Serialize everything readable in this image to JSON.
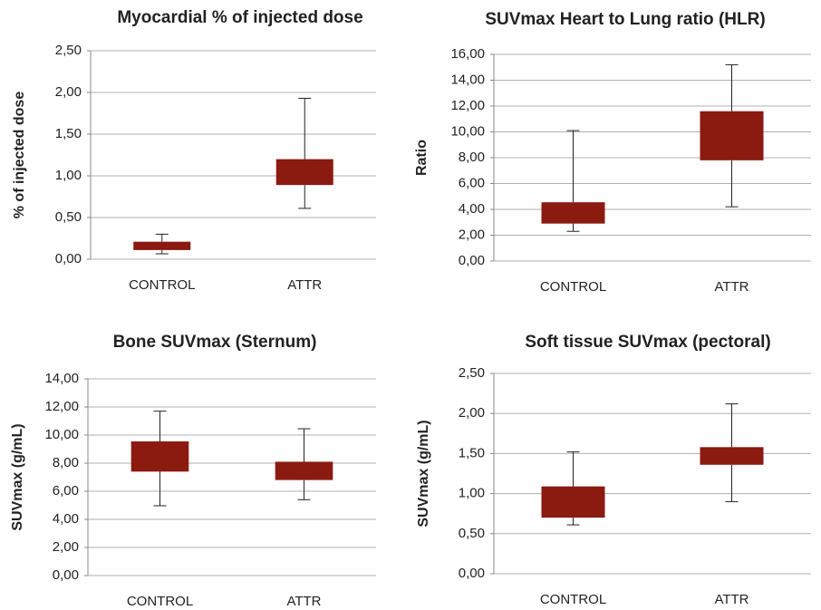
{
  "chart_data": [
    {
      "type": "box",
      "title": "Myocardial % of injected dose",
      "ylabel": "% of injected dose",
      "categories": [
        "CONTROL",
        "ATTR"
      ],
      "color": "#8b1a10",
      "min": [
        0.065,
        0.61
      ],
      "q1": [
        0.11,
        0.89
      ],
      "q3": [
        0.21,
        1.2
      ],
      "max": [
        0.3,
        1.93
      ],
      "ylim": [
        0,
        2.5
      ],
      "yticks": [
        {
          "value": 0,
          "label": "0,00"
        },
        {
          "value": 0.5,
          "label": "0,50"
        },
        {
          "value": 1,
          "label": "1,00"
        },
        {
          "value": 1.5,
          "label": "1,50"
        },
        {
          "value": 2,
          "label": "2,00"
        },
        {
          "value": 2.5,
          "label": "2,50"
        }
      ],
      "grid": true
    },
    {
      "type": "box",
      "title": "SUVmax Heart to Lung ratio (HLR)",
      "ylabel": "Ratio",
      "categories": [
        "CONTROL",
        "ATTR"
      ],
      "color": "#8b1a10",
      "min": [
        2.3,
        4.2
      ],
      "q1": [
        2.9,
        7.8
      ],
      "q3": [
        4.55,
        11.6
      ],
      "max": [
        10.1,
        15.2
      ],
      "ylim": [
        0,
        16
      ],
      "yticks": [
        {
          "value": 0,
          "label": "0,00"
        },
        {
          "value": 2,
          "label": "2,00"
        },
        {
          "value": 4,
          "label": "4,00"
        },
        {
          "value": 6,
          "label": "6,00"
        },
        {
          "value": 8,
          "label": "8,00"
        },
        {
          "value": 10,
          "label": "10,00"
        },
        {
          "value": 12,
          "label": "12,00"
        },
        {
          "value": 14,
          "label": "14,00"
        },
        {
          "value": 16,
          "label": "16,00"
        }
      ],
      "grid": true
    },
    {
      "type": "box",
      "title": "Bone SUVmax (Sternum)",
      "ylabel": "SUVmax (g/mL)",
      "categories": [
        "CONTROL",
        "ATTR"
      ],
      "color": "#8b1a10",
      "min": [
        4.97,
        5.4
      ],
      "q1": [
        7.4,
        6.8
      ],
      "q3": [
        9.55,
        8.1
      ],
      "max": [
        11.7,
        10.45
      ],
      "ylim": [
        0,
        14
      ],
      "yticks": [
        {
          "value": 0,
          "label": "0,00"
        },
        {
          "value": 2,
          "label": "2,00"
        },
        {
          "value": 4,
          "label": "4,00"
        },
        {
          "value": 6,
          "label": "6,00"
        },
        {
          "value": 8,
          "label": "8,00"
        },
        {
          "value": 10,
          "label": "10,00"
        },
        {
          "value": 12,
          "label": "12,00"
        },
        {
          "value": 14,
          "label": "14,00"
        }
      ],
      "grid": true
    },
    {
      "type": "box",
      "title": "Soft tissue SUVmax (pectoral)",
      "ylabel": "SUVmax (g/mL)",
      "categories": [
        "CONTROL",
        "ATTR"
      ],
      "color": "#8b1a10",
      "min": [
        0.61,
        0.9
      ],
      "q1": [
        0.7,
        1.36
      ],
      "q3": [
        1.09,
        1.58
      ],
      "max": [
        1.52,
        2.12
      ],
      "ylim": [
        0,
        2.5
      ],
      "yticks": [
        {
          "value": 0,
          "label": "0,00"
        },
        {
          "value": 0.5,
          "label": "0,50"
        },
        {
          "value": 1,
          "label": "1,00"
        },
        {
          "value": 1.5,
          "label": "1,50"
        },
        {
          "value": 2,
          "label": "2,00"
        },
        {
          "value": 2.5,
          "label": "2,50"
        }
      ],
      "grid": true
    }
  ]
}
